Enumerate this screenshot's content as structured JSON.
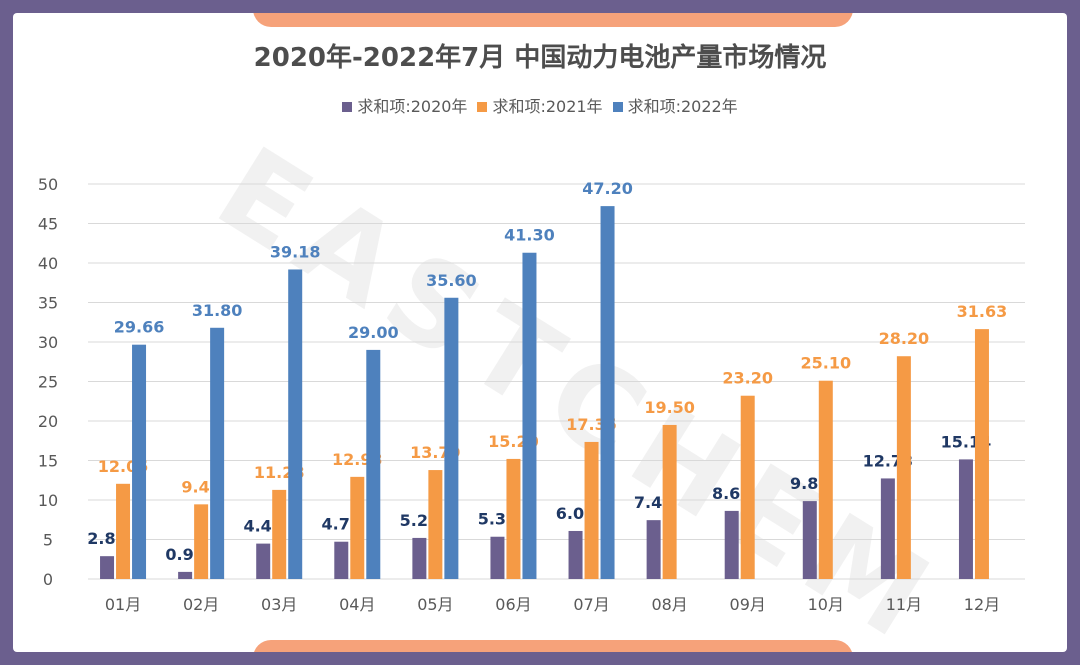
{
  "chart_data": {
    "type": "bar",
    "title": "2020年-2022年7月 中国动力电池产量市场情况",
    "categories": [
      "01月",
      "02月",
      "03月",
      "04月",
      "05月",
      "06月",
      "07月",
      "08月",
      "09月",
      "10月",
      "11月",
      "12月"
    ],
    "series": [
      {
        "name": "求和项:2020年",
        "color": "#6b5f8e",
        "label_color": "#1f3864",
        "values": [
          2.89,
          0.9,
          4.48,
          4.72,
          5.2,
          5.35,
          6.08,
          7.45,
          8.62,
          9.86,
          12.73,
          15.14
        ],
        "labels": [
          "2.89",
          "0.90",
          "4.48",
          "4.72",
          "5.20",
          "5.35",
          "6.08",
          "7.45",
          "8.62",
          "9.86",
          "12.73",
          "15.14"
        ]
      },
      {
        "name": "求和项:2021年",
        "color": "#f59a45",
        "label_color": "#f59a45",
        "values": [
          12.05,
          9.45,
          11.28,
          12.93,
          13.79,
          15.2,
          17.35,
          19.5,
          23.2,
          25.1,
          28.2,
          31.63
        ],
        "labels": [
          "12.05",
          "9.45",
          "11.28",
          "12.93",
          "13.79",
          "15.20",
          "17.35",
          "19.50",
          "23.20",
          "25.10",
          "28.20",
          "31.63"
        ]
      },
      {
        "name": "求和项:2022年",
        "color": "#4e81bd",
        "label_color": "#4e81bd",
        "values": [
          29.66,
          31.8,
          39.18,
          29.0,
          35.6,
          41.3,
          47.2,
          null,
          null,
          null,
          null,
          null
        ],
        "labels": [
          "29.66",
          "31.80",
          "39.18",
          "29.00",
          "35.60",
          "41.30",
          "47.20",
          "",
          "",
          "",
          "",
          ""
        ]
      }
    ],
    "ylim": [
      0,
      50
    ],
    "yticks": [
      "0",
      "5",
      "10",
      "15",
      "20",
      "25",
      "30",
      "35",
      "40",
      "45",
      "50"
    ],
    "grid": true,
    "legend_position": "top"
  },
  "watermark": "EASTCHEM"
}
